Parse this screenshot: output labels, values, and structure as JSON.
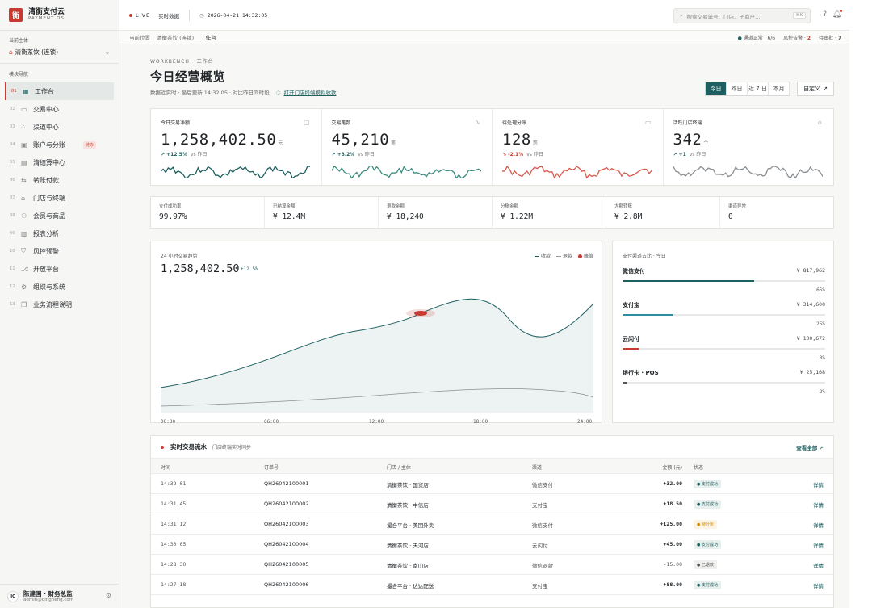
{
  "brand": {
    "name": "清衡支付云",
    "sub": "PAYMENT OS",
    "logo": "衡"
  },
  "sidebar": {
    "entity_label": "当前主体",
    "entity_value": "清衡茶饮 (连锁)",
    "nav_label": "模块导航",
    "items": [
      {
        "num": "01",
        "icon": "grid-icon",
        "label": "工作台",
        "active": true
      },
      {
        "num": "02",
        "icon": "card-icon",
        "label": "交易中心"
      },
      {
        "num": "03",
        "icon": "network-icon",
        "label": "渠道中心"
      },
      {
        "num": "04",
        "icon": "wallet-icon",
        "label": "账户与分账",
        "tag": "待办"
      },
      {
        "num": "05",
        "icon": "ledger-icon",
        "label": "清结算中心"
      },
      {
        "num": "06",
        "icon": "transfer-icon",
        "label": "转账付款"
      },
      {
        "num": "07",
        "icon": "store-icon",
        "label": "门店与终端"
      },
      {
        "num": "08",
        "icon": "people-icon",
        "label": "会员与商品"
      },
      {
        "num": "09",
        "icon": "chart-icon",
        "label": "报表分析"
      },
      {
        "num": "10",
        "icon": "shield-icon",
        "label": "风控预警"
      },
      {
        "num": "11",
        "icon": "plug-icon",
        "label": "开放平台"
      },
      {
        "num": "12",
        "icon": "gear-icon",
        "label": "组织与系统"
      },
      {
        "num": "13",
        "icon": "book-icon",
        "label": "业务流程说明"
      }
    ]
  },
  "user": {
    "initials": "JC",
    "name": "陈建国 · 财务总监",
    "email": "admin@qingheng.com"
  },
  "topbar": {
    "live": "LIVE",
    "live_sub": "实时数据",
    "datetime": "2026-04-21 14:32:05",
    "search_placeholder": "搜索交易单号、门店、子商户…",
    "kbd": "⌘K"
  },
  "crumbs": {
    "label": "当前位置",
    "parent": "清衡茶饮 (连锁)",
    "current": "工作台",
    "channel": "通道正常 · 6/6",
    "risk_label": "风控告警 ·",
    "risk_count": "2",
    "pending_label": "待审批 ·",
    "pending_count": "7"
  },
  "page": {
    "eyebrow": "WORKBENCH · 工作台",
    "title": "今日经营概览",
    "subtitle": "数据近实时 · 最后更新 14:32:05 · 对比昨日同时段",
    "link": "打开门店终端模拟收款",
    "ranges": [
      "今日",
      "昨日",
      "近 7 日",
      "本月"
    ],
    "custom": "自定义"
  },
  "kpis": [
    {
      "label": "今日交易净额",
      "value": "1,258,402.50",
      "unit": "元",
      "delta": "↗ +12.5%",
      "vs": "vs 昨日",
      "neg": false,
      "icon": "document-icon",
      "color": "#1e5f60"
    },
    {
      "label": "交易笔数",
      "value": "45,210",
      "unit": "笔",
      "delta": "↗ +8.2%",
      "vs": "vs 昨日",
      "neg": false,
      "icon": "pulse-icon",
      "color": "#3d8c7f"
    },
    {
      "label": "待处理分账",
      "value": "128",
      "unit": "笔",
      "delta": "↘ -2.1%",
      "vs": "vs 昨日",
      "neg": true,
      "icon": "card-icon",
      "color": "#d9584c"
    },
    {
      "label": "活跃门店终端",
      "value": "342",
      "unit": "个",
      "delta": "↗ +1",
      "vs": "vs 昨日",
      "neg": false,
      "icon": "store-icon",
      "color": "#8a8f93"
    }
  ],
  "metrics": [
    {
      "label": "支付成功率",
      "value": "99.97%"
    },
    {
      "label": "已结算金额",
      "value": "¥ 12.4M"
    },
    {
      "label": "退款金额",
      "value": "¥ 18,240"
    },
    {
      "label": "分账金额",
      "value": "¥ 1.22M"
    },
    {
      "label": "大额转账",
      "value": "¥ 2.8M"
    },
    {
      "label": "渠道异常",
      "value": "0"
    }
  ],
  "trend": {
    "label": "24 小时交易趋势",
    "value": "1,258,402.50",
    "delta": "+12.5%",
    "legend": [
      "收款",
      "退款",
      "峰值"
    ],
    "xticks": [
      "00:00",
      "06:00",
      "12:00",
      "18:00",
      "24:00"
    ]
  },
  "share": {
    "label": "支付渠道占比 · 今日",
    "rows": [
      {
        "name": "微信支付",
        "amount": "¥ 817,962",
        "pct": "65%",
        "frac": 0.65,
        "color": "#1e5f60"
      },
      {
        "name": "支付宝",
        "amount": "¥ 314,600",
        "pct": "25%",
        "frac": 0.25,
        "color": "#2b8fa0"
      },
      {
        "name": "云闪付",
        "amount": "¥ 100,672",
        "pct": "8%",
        "frac": 0.08,
        "color": "#c8392f"
      },
      {
        "name": "银行卡 · POS",
        "amount": "¥ 25,168",
        "pct": "2%",
        "frac": 0.02,
        "color": "#555555"
      }
    ]
  },
  "table": {
    "title": "实时交易流水",
    "subtitle": "门店终端实时同步",
    "view_all": "查看全部",
    "cols": [
      "时间",
      "订单号",
      "门店 / 主体",
      "渠道",
      "金额 (元)",
      "状态"
    ],
    "rows": [
      {
        "time": "14:32:01",
        "order": "QH26042100001",
        "store": "清衡茶饮 · 国贸店",
        "channel": "微信支付",
        "amount": "+32.00",
        "status": "支付成功",
        "kind": "ok"
      },
      {
        "time": "14:31:45",
        "order": "QH26042100002",
        "store": "清衡茶饮 · 中信店",
        "channel": "支付宝",
        "amount": "+18.50",
        "status": "支付成功",
        "kind": "ok"
      },
      {
        "time": "14:31:12",
        "order": "QH26042100003",
        "store": "撮合平台 · 美团外卖",
        "channel": "微信支付",
        "amount": "+125.00",
        "status": "待分账",
        "kind": "wait"
      },
      {
        "time": "14:30:05",
        "order": "QH26042100004",
        "store": "清衡茶饮 · 天河店",
        "channel": "云闪付",
        "amount": "+45.00",
        "status": "支付成功",
        "kind": "ok"
      },
      {
        "time": "14:28:30",
        "order": "QH26042100005",
        "store": "清衡茶饮 · 南山店",
        "channel": "微信退款",
        "amount": "-15.00",
        "status": "已退款",
        "kind": "ref"
      },
      {
        "time": "14:27:18",
        "order": "QH26042100006",
        "store": "撮合平台 · 达达配送",
        "channel": "支付宝",
        "amount": "+88.00",
        "status": "支付成功",
        "kind": "ok"
      }
    ],
    "detail": "详情"
  }
}
